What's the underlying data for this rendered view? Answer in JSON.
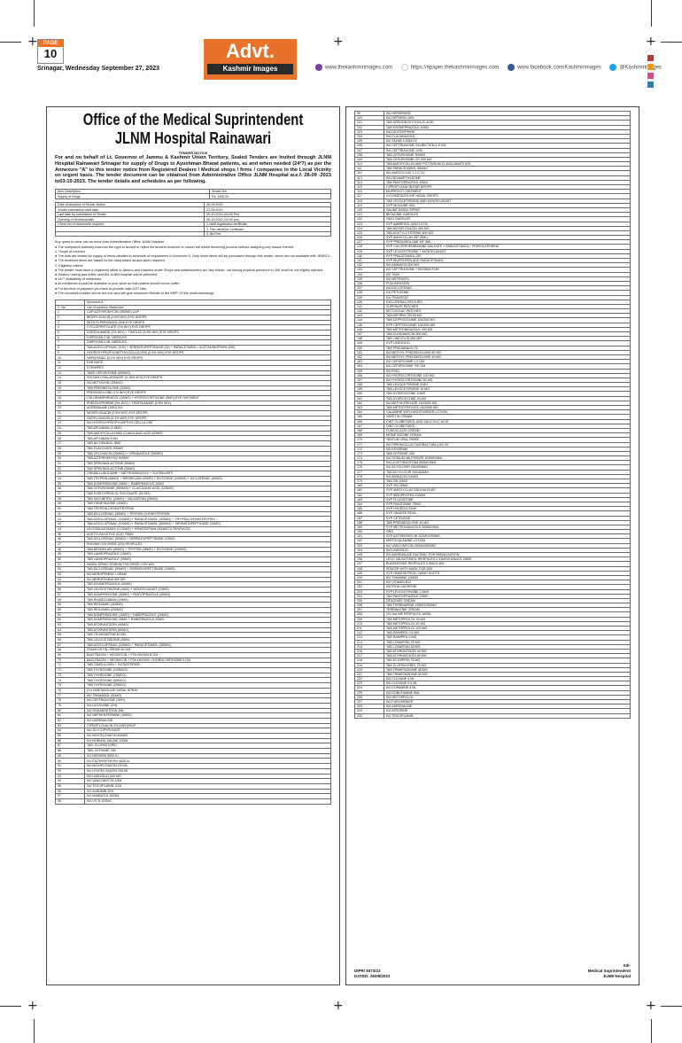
{
  "header": {
    "page_label": "PAGE",
    "page_number": "10",
    "date_line": "Srinagar, Wednesday September 27, 2023",
    "advt_title": "Advt.",
    "advt_brand": "Kashmir Images",
    "social": [
      {
        "icon": "globe-icon",
        "color": "#7b3fa0",
        "text": "www.thekashmirimages.com"
      },
      {
        "icon": "link-icon",
        "color": "#ffffff",
        "text": "https://epaper.thekashmirimages.com"
      },
      {
        "icon": "facebook-icon",
        "color": "#3b5998",
        "text": "www.facebook.com/Kashmirimages"
      },
      {
        "icon": "twitter-icon",
        "color": "#1da1f2",
        "text": "@Kashmirimages"
      }
    ],
    "colors": {
      "accent": "#e8722a",
      "dark": "#2a2a2a"
    }
  },
  "notice": {
    "title_line1": "Office of the Medical Suprintendent",
    "title_line2": "JLNM Hospital Rainawari",
    "tender_heading": "TENDER NOTICE",
    "intro": "For and on behalf of Lt. Governor of Jammu & Kashmir Union Territory, Sealed Tenders are Invited through JLNM Hospital Rainawari Srinagar for supply of Drugs to Ayushman Bharat patients, as and when needed (24*7) as per the Annexure \"A\" to this tender notice from Registered Dealers / Medical shops / firms / companies in the Local Vicinity on urgent basis. The tender document can be obtained from Administrative Office JLNM Hospital w.e.f. 28-09 -2023 to03-10-2023. The tender details and schedules as per following.",
    "info_rows": [
      [
        "Item Description",
        "Tender fee"
      ],
      [
        "Supply of Drugs",
        "Rs. 1000.00"
      ]
    ],
    "schedule_rows": [
      [
        "Date of issuance of Tender Notice",
        "26-09-2023"
      ],
      [
        "Tender submission start date",
        "27-09-2023"
      ],
      [
        "Last date for submission of Tender",
        "05-10-2023 (04:00 Pm)"
      ],
      [
        "Opening of Technical bids",
        "06-10-2023 (02:00 pm)"
      ],
      [
        "Check list of documents required",
        "1.Valid registration certificate"
      ],
      [
        "",
        "2. Pan card/Gst Certificate"
      ],
      [
        "",
        "3. Bid Fee"
      ]
    ],
    "clauses": [
      "Any query to clear can be done from Administrative Office JLNM Hospital.",
      "● The competent authority reserves the right to accept or reject the tenders received or cancel the whole tendering process without assigning any reason thereof.",
      "1.                  Scope of contract",
      "● The bids are invited for supply of items detailed in schedule of requirement in Annexure A. Only those items will be purchased through this tender, which are not available with JKMSCL.",
      "● The tendered items are based on the need basis/ as and when required.",
      "2.                  Eligibility criteria",
      "● The bidder must have a registered office in Jammu and Kashmir under Shops and establishment act. Any bidder, not having physical presence in J&K shall be not eligibly rejected.",
      "● Dealers having and outlet near the JLNM Hospital will be preferred",
      "● 24*7 availability of medicines.",
      "● All medicines should be available in your store so that patient should not be suffer.",
      "● For the time of payment you have to provide valid GST bills.",
      "● The successful bidder will be the one who will give maximum Rebate to the MRP. Of the medicines/drugs."
    ],
    "annexure_label": "Annexure A",
    "table_header": {
      "no": "S. No",
      "name": "List of common Medicines"
    },
    "medicines_left": [
      [
        "1",
        "CAP AZITHROMYCIN (250MG) CAP"
      ],
      [
        "2",
        "BESIFLOXACIN (0.6% W/V) EYE DROPS"
      ],
      [
        "3",
        "WITH PLPREDNISOLONE EYE DROPS"
      ],
      [
        "4",
        "CYCLOPENTOLATE (1% W/V) EYE DROPS"
      ],
      [
        "5",
        "DORZOLAMIDE (2% W/V) + TIMOLOL (0.5% W/V) EYE DROPS"
      ],
      [
        "6",
        "DISPOVAN 2 ML NEEDLES"
      ],
      [
        "7",
        "DISPOVAN 5 ML NEEDLES"
      ],
      [
        "8",
        "TAB ACECLOFENAC (100) + SERRATIOPEPTIDASE (15) + PARACETAMOL / ACETAMINOPHEN (325)"
      ],
      [
        "9",
        "HYDROXYPROPYLMETHYLCELLULOSE (0.3% W/V) EYE DROPS"
      ],
      [
        "10",
        "NEPAFENAC (0.1% W/V) EYE DROPS"
      ],
      [
        "11",
        "EAR BUDS"
      ],
      [
        "12",
        "EYEWIPES"
      ],
      [
        "13",
        "TABS CEFUROXIME (500MG)"
      ],
      [
        "14",
        "SODIUM HYALURONATE (0.18% W/V) EYE DROPS"
      ],
      [
        "15",
        "INJ METHOXIN (250MG)"
      ],
      [
        "16",
        "TAB PREDNISOLONE (20MG)"
      ],
      [
        "17",
        "PREDNISOLONE (1% W/V) EYE DROPS"
      ],
      [
        "18",
        "CHLORAMPHENICOL (10MG) + HYDROCORTISONE (5MG) EYE OINTMENT"
      ],
      [
        "19",
        "PHENYLEPHRINE (5% W/V) + TROPICAMIDE (0.8% W/V)"
      ],
      [
        "20",
        "ADRENALINE (1MG) INJ"
      ],
      [
        "21",
        "MOXIFLOXACIN (0.5% W/V) EYE DROPS"
      ],
      [
        "22",
        "GATIFLOXACIN (0.3% W/V) EYE DROPS"
      ],
      [
        "23",
        "INJ HYDROXYPROPYLMETHYLCELLULOSE"
      ],
      [
        "24",
        "TAB APIXABAN (2.5MG)"
      ],
      [
        "25",
        "TAB AMOXYCILLIN AND CLAVULANIC ACID 625MG"
      ],
      [
        "26",
        "TAB APIXABAN 5 MG"
      ],
      [
        "27",
        "TAB NICORANDIL 5MG"
      ],
      [
        "28",
        "TAB FLAVOXATE 200MG"
      ],
      [
        "29",
        "TAB OFLOXACIN (200MG) + ORNIDAZOLE (500MG)"
      ],
      [
        "30",
        "TAB AZITHROMYCIN 500MG"
      ],
      [
        "31",
        "TAB SPIRONOLACTONE (50MG)"
      ],
      [
        "32",
        "TAB SPIRONOLACTONE (25MG)"
      ],
      [
        "33",
        "CREAM LUDOCAINE + METRONIDAZOLE + SUCRALFATE"
      ],
      [
        "34",
        "TAB TRYPSIN (48MG) + BROMELAIN (90MG) + RUTOSIDE (100MG) + DICLOFENAC (50MG)"
      ],
      [
        "35",
        "TAB DOMPERIDONE 20MG + RABEPRAZOLE 20MG"
      ],
      [
        "36",
        "TAB CEFUROXIME (500MG) + CLAVULANIC ACID (125MG)"
      ],
      [
        "37",
        "TAB S-METOPROLOL SUCCINATE (50 MG)"
      ],
      [
        "38",
        "TAB SACUBITRIL (24MG) + VALSARTAN (26MG)"
      ],
      [
        "39",
        "TAB TIENETAZONE (40MG)"
      ],
      [
        "40",
        "TAB TRYPSIN CHYMOTRYPSIN"
      ],
      [
        "41",
        "TAB DICLOFENAC (50MG) + TRYPSIN CHYMOTRYPSIN"
      ],
      [
        "42",
        "TAB ACECLOFENAC (100MG) + PARACETAMOL (325MG) + TRYPSIN CHYMOTRYPSIN"
      ],
      [
        "43",
        "TAB ACECLOFENAC (100MG) + PARACETAMOL (500MG) + SERRATIOPEPTIDASE (15MG)"
      ],
      [
        "44",
        "LEVOSALBUTAMOL (0.25MG) + IPRATROPIUM (500MCG) RESPULES"
      ],
      [
        "45",
        "ACETYLSALICYLIC ACID 75MG"
      ],
      [
        "46",
        "TAB DICLOFENAC (50MG) + SERRATIOPEPTIDASE (10MG)"
      ],
      [
        "47",
        "SODIUM CHLORIDE (3%) RESPULES"
      ],
      [
        "48",
        "TAB BROMELAIN (90MG) + TRYPSIN (48MG) + RUTOSIDE (100MG)"
      ],
      [
        "49",
        "TAB LANSOPRAZOLE (15MG)"
      ],
      [
        "50",
        "TAB LANSOPRAZOLE (30MG)"
      ],
      [
        "51",
        "NASAL SPRAY SODIUM CHLORIDE 0.9% W/V"
      ],
      [
        "52",
        "TAB DICLOFENAC (50MG) + SERRATIOPEPTIDASE (10MG)"
      ],
      [
        "53",
        "INJ MEROPENEM 1 GRAM"
      ],
      [
        "54",
        "INJ MEROPENEM 500 MG"
      ],
      [
        "55",
        "TAB ESOMEPRAZOLE (40MG)"
      ],
      [
        "56",
        "TAB LEVOCETIRIZINE (5MG) + MONTELUKAST (10MG)"
      ],
      [
        "57",
        "TAB DOMPERIDONE (30MG) + PANTOPRAZOLE (40MG)"
      ],
      [
        "58",
        "TAB RIVAROXABAN (15MG)"
      ],
      [
        "59",
        "TAB RIFAXIMIN (400MG)"
      ],
      [
        "60",
        "TAB RIFAXIMIN (200MG)"
      ],
      [
        "61",
        "TAB DOMPERIDONE (10MG) + RABEPRAZOLE (20MG)"
      ],
      [
        "62",
        "TAB DOMPERIDONE 30MG + RABEPRAZOLE 20MG"
      ],
      [
        "63",
        "TAB ATORVASTATIN (40MG)"
      ],
      [
        "64",
        "TAB ATORVASTATIN (80MG)"
      ],
      [
        "65",
        "TAB TELMISARTAN 40 MG"
      ],
      [
        "66",
        "TAB LEVOCETIRIZINE (5MG)"
      ],
      [
        "67",
        "TAB ACECLOFENAC (100MG) + PARACETAMOL (325MG)"
      ],
      [
        "68",
        "FRAMYCETIN CREAM 30 GM"
      ],
      [
        "69",
        "BACITRACIN + NEOMYCIN + POLYMYXIN B GM"
      ],
      [
        "70",
        "BACITRACIN + NEOMYCIN + POLYMYXIN+ HYDROCORTISONE 5 GM"
      ],
      [
        "71",
        "TAB TAMSULOSIN + DUTASTERIDE"
      ],
      [
        "72",
        "TAB THYROXINE (100MCG)"
      ],
      [
        "73",
        "TAB THYROXINE (75MCG)"
      ],
      [
        "74",
        "TAB THYROXINE (50MCG)"
      ],
      [
        "75",
        "TAB THYROXINE (25MCG)"
      ],
      [
        "76",
        "XYLOMETAZOLINE NASAL SPRAY"
      ],
      [
        "77",
        "INJ TRAMADOL (50MG)"
      ],
      [
        "78",
        "INJ CEFTRIAXONE (1MG)"
      ],
      [
        "79",
        "INJ LIDOCAINE (2%)"
      ],
      [
        "80",
        "INJ ONDANSETRON 2ML"
      ],
      [
        "81",
        "INJ NEPHENTERMINE (30MG)"
      ],
      [
        "82",
        "INJ ADRENALINE"
      ],
      [
        "83",
        "CIPROFLOXACIN 3% EAR DROP"
      ],
      [
        "84",
        "INJ GLYCOPYROLATE"
      ],
      [
        "85",
        "INJ MOXIFLOXACIN 400MG"
      ],
      [
        "86",
        "INJ NORMAL SALINE 100ML"
      ],
      [
        "87",
        "TAB. CLOPIDOGREL"
      ],
      [
        "88",
        "TAB. CEFIXIME 200"
      ],
      [
        "89",
        "INJ HEPARIN 5000 IU"
      ],
      [
        "90",
        "INJ ENTEROPORTIN 4000 IU"
      ],
      [
        "91",
        "INJ MOXIFLOXACIN 100 ML"
      ],
      [
        "92",
        "INJ LEVOFLOXACIN 100 ML"
      ],
      [
        "93",
        "INJ LINEZOLID 600 MG"
      ],
      [
        "94",
        "INJ VANCOMYCIN 1GM"
      ],
      [
        "95",
        "INJ TEICOPLANIN 1GM"
      ],
      [
        "96",
        "INJ ALBUMIN 20%"
      ],
      [
        "97",
        "INJ MANNITOL 500ML"
      ],
      [
        "98",
        "INJ VIT B 100MG"
      ]
    ],
    "medicines_right": [
      [
        "99",
        "INJ HEPARINISE"
      ],
      [
        "100",
        "INJ HEPARIN LMW"
      ],
      [
        "101",
        "TAB URSODEOXYCHOLIC ACID"
      ],
      [
        "102",
        "TAB ESOMEPRAZOLE 40MG"
      ],
      [
        "103",
        "INJ DEXTROPHINE"
      ],
      [
        "104",
        "INJ FLUCANAZOLE"
      ],
      [
        "105",
        "INJ TAZAB 4.5GM I/V"
      ],
      [
        "106",
        "INJ CEFTRIAXONE SALBECTEM 1.5 GM"
      ],
      [
        "107",
        "INJ CEFTRIAXONE 1GM"
      ],
      [
        "108",
        "TAB CEFUROXIME 500MG"
      ],
      [
        "109",
        "TAB CEFUROXIME CR 500 MG"
      ],
      [
        "110",
        "TAB AMOXYCILLIN AND POTTASIUM CLAVULANATE 625"
      ],
      [
        "111",
        "TAB PARACETAMOL 650MG"
      ],
      [
        "112",
        "INJ AMOXYCLAV 1.2 G I/V"
      ],
      [
        "113",
        "INJ DEXAMETHASONE"
      ],
      [
        "114",
        "TAB PANTOPRAZOLE 40MG"
      ],
      [
        "115",
        "CIPROFLOXACIN EAR DROPS"
      ],
      [
        "116",
        "MUPIROCIT OINTMENT"
      ],
      [
        "117",
        "XYLOMETAZOLINE NASAL DROPS"
      ],
      [
        "118",
        "TAB LEVOCETIRIZINE AND MONTELUKAST"
      ],
      [
        "119",
        "SYP MUCAINE GEL"
      ],
      [
        "120",
        "SALINE NASAL SPRAY"
      ],
      [
        "121",
        "BETADINE GARGLES"
      ],
      [
        "122",
        "HAXJ GARGLES"
      ],
      [
        "123",
        "SYP AMBRODIL (MUCOLTE)"
      ],
      [
        "124",
        "TAB MOXIFLOXACIN 400 MG"
      ],
      [
        "125",
        "TAB ACETYLCYSTEINE 600 MG"
      ],
      [
        "126",
        "SYP AMOXYCLAV 457 (5ML)"
      ],
      [
        "127",
        "SYP PREDNISOLONE MF 360"
      ],
      [
        "128",
        "SYP CHLORPHENIRAMINE MALEATE + PARACETAMOL+ PHENYLEPHRINE"
      ],
      [
        "129",
        "SYP LEVOCETRIZINE + MONTELUKAST"
      ],
      [
        "130",
        "SYP PRACETAMOL 250"
      ],
      [
        "131",
        "SYP IBUPROFEN AND PARACETAMOL"
      ],
      [
        "132",
        "INJ AMIKACIN 500 MG"
      ],
      [
        "133",
        "INJ CEFTRIAXONE +TAZOBACTUM"
      ],
      [
        "134",
        "INJ TIMA"
      ],
      [
        "135",
        "INJ METROGYL"
      ],
      [
        "136",
        "PCM INFUSION"
      ],
      [
        "137",
        "INJ DICLOFENAC"
      ],
      [
        "138",
        "INJ PETHIDINE"
      ],
      [
        "139",
        "INJ TRAMSTAT"
      ],
      [
        "140",
        "DICLOFENAC PATCHES"
      ],
      [
        "141",
        "ZUPRINOR PATCHES"
      ],
      [
        "142",
        "KETOVOLAC PATCHES"
      ],
      [
        "143",
        "TAB ASPIRIN 75/150 MG"
      ],
      [
        "144",
        "TAB CEFPODOXIME 100/200 MG"
      ],
      [
        "145",
        "SYP CEFPODOXIME 100/200 MG"
      ],
      [
        "146",
        "TAB METRONIDAZOLE 400 MG"
      ],
      [
        "147",
        "TAB CLINDAMYCIN 300 MG"
      ],
      [
        "148",
        "TAB LINEZOLID 600 MG"
      ],
      [
        "149",
        "SYP LINEZOLID"
      ],
      [
        "150",
        "TAB PREGABALIN 75"
      ],
      [
        "151",
        "INJ METHYL PREDNISOLONE 80 MG"
      ],
      [
        "152",
        "INJ METHYL PREDNISOLONE 40 MG"
      ],
      [
        "153",
        "INJ CEFUROXIME 1.5 GM"
      ],
      [
        "154",
        "INJ CEFUROXIME 750 GM"
      ],
      [
        "155",
        "INJ EVEL"
      ],
      [
        "156",
        "INJ HYDROCORTISONE 100 MG"
      ],
      [
        "157",
        "INJ HYDROCORTISONE 50 MG"
      ],
      [
        "158",
        "TAB LEVOCETIRIZINE 5 MG"
      ],
      [
        "159",
        "TAB LEVOCETIRIZINE 10 MG"
      ],
      [
        "160",
        "TAB HYDROXYZINE 10MG"
      ],
      [
        "161",
        "TAB HYDROXYZINE 25 MG"
      ],
      [
        "162",
        "INJ METHOTREXATE 15/25/50 MG"
      ],
      [
        "163",
        "TAB METHOTREXATE 15/25/50 MG"
      ],
      [
        "164",
        "CALAMINE WITH MOISTURISER LOTION"
      ],
      [
        "165",
        "VARETIN CREAM"
      ],
      [
        "166",
        "OINT CLOBETASOL AND SALICYLIC ACID"
      ],
      [
        "167",
        "OINT CLOBETASOL"
      ],
      [
        "168",
        "FUSIDIC ACID CREAM"
      ],
      [
        "169",
        "MOMETASONE CREAM"
      ],
      [
        "170",
        "TANTUM ORAL RINSE"
      ],
      [
        "171",
        "INJ PIPERACILLIN TAZOBACTUM 4.5/2.25"
      ],
      [
        "172",
        "INJ KEVERAM"
      ],
      [
        "173",
        "TAB CEFIXIME 200"
      ],
      [
        "174",
        "INJ SODIUM VALPORATE 500MG/5ML"
      ],
      [
        "175",
        "INJ LEVETIRACETAM 500MG/5ML"
      ],
      [
        "176",
        "INJ ACYCLOVIR 250/500MG"
      ],
      [
        "177",
        "TAB ACYCLOVIR 200/400MG"
      ],
      [
        "178",
        "INJ AMIKACIN 100MG"
      ],
      [
        "179",
        "TAB ZIN 20MG"
      ],
      [
        "180",
        "SYP ZIN 20MG"
      ],
      [
        "181",
        "SYP AMOXYCLAV 228.5 ML/5 MG"
      ],
      [
        "182",
        "SYP IBRUPROFEN 100MG"
      ],
      [
        "183",
        "SYP FLUOXETINE"
      ],
      [
        "184",
        "SYP RANITIDINE 75MG"
      ],
      [
        "185",
        "SYP HYDROXYZINE"
      ],
      [
        "186",
        "SYP ONDESETRON"
      ],
      [
        "187",
        "SYP CETRIZINE"
      ],
      [
        "188",
        "TAB PREDNISOLONE 10 MG"
      ],
      [
        "189",
        "SYP METRONIDAZOLE 200MG/5ML"
      ],
      [
        "190",
        "ORS"
      ],
      [
        "191",
        "SYP AZITHROMYCIN 100MG/200MG"
      ],
      [
        "192",
        "MISTOCALAMINE LOTION"
      ],
      [
        "193",
        "INJ VANCOMYCIN 250MG/500MG"
      ],
      [
        "194",
        "INJ LINEZOLID"
      ],
      [
        "195",
        "INJ ADRENALINE RACEMIC FOR NEBULISATION"
      ],
      [
        "196",
        "LEVO SALBUTOMOL RESPULES 0.31MG/0.63MG/1.25MG"
      ],
      [
        "197",
        "BUDENOSIDE RESPULES 0.5MG/1 MG"
      ],
      [
        "198",
        "SPACER WITH MASK FOR MDI"
      ],
      [
        "199",
        "SYP ONDESETRON / NANO SHOTS"
      ],
      [
        "200",
        "INJ THIAMINE 100MG"
      ],
      [
        "201",
        "INJ VITAMIN B12"
      ],
      [
        "202",
        "INJ IRON SUCROSE"
      ],
      [
        "203",
        "SYP LEVOCETRIZINE 2.5MG"
      ],
      [
        "204",
        "TAB PANTOPRAZOLE 20MG"
      ],
      [
        "205",
        "DESONIDE CREAM"
      ],
      [
        "206",
        "TAB TERBINAFINE 125MG/250MG"
      ],
      [
        "207",
        "TERBINAFINE CREAM"
      ],
      [
        "208",
        "3% SALINE RESPULES 100ML"
      ],
      [
        "209",
        "TAB METOPROLOL 25 MG"
      ],
      [
        "210",
        "TAB METOPROLOL 50 MG"
      ],
      [
        "211",
        "TAB METOPROLOL 100 MG"
      ],
      [
        "212",
        "TAB RAMIPRIL 2.5 MG"
      ],
      [
        "213",
        "TAB RAMIPRIL 5 MG"
      ],
      [
        "214",
        "TAB LOSARTAN 25 MG"
      ],
      [
        "215",
        "TAB LOSARTAN 50 MG"
      ],
      [
        "216",
        "TAB ATORVASTATIN 40 MG"
      ],
      [
        "217",
        "TAB ATORVASTATIN 80 MG"
      ],
      [
        "218",
        "TAB ECOSPRIN 75 MG"
      ],
      [
        "219",
        "TAB CLOPIDOGREL 75 MG"
      ],
      [
        "220",
        "TAB TRIMETAZIDINE 35 MG"
      ],
      [
        "221",
        "TAB TRIMETAZIDINE 60 MG"
      ],
      [
        "222",
        "INJ CLEXANE 4 ML"
      ],
      [
        "223",
        "INJ CLEXANE 0.6 ML"
      ],
      [
        "224",
        "INJ DOPAMINE 5 ML"
      ],
      [
        "225",
        "INJ DOBUTAMINE 5ML"
      ],
      [
        "226",
        "INJ METOPROLOL"
      ],
      [
        "227",
        "INJ FUROSEMIDE"
      ],
      [
        "228",
        "INJ ADRENALINE"
      ],
      [
        "229",
        "INJ ATROPINE"
      ],
      [
        "230",
        "INJ TEICOPLANIN"
      ]
    ],
    "footer_ref": [
      "DIPR/ 9473/23",
      "DATED: 26/09/2023"
    ],
    "footer_sign": [
      "Sd/-",
      "Medical Suprintendent",
      "JLNM Hospital"
    ]
  }
}
